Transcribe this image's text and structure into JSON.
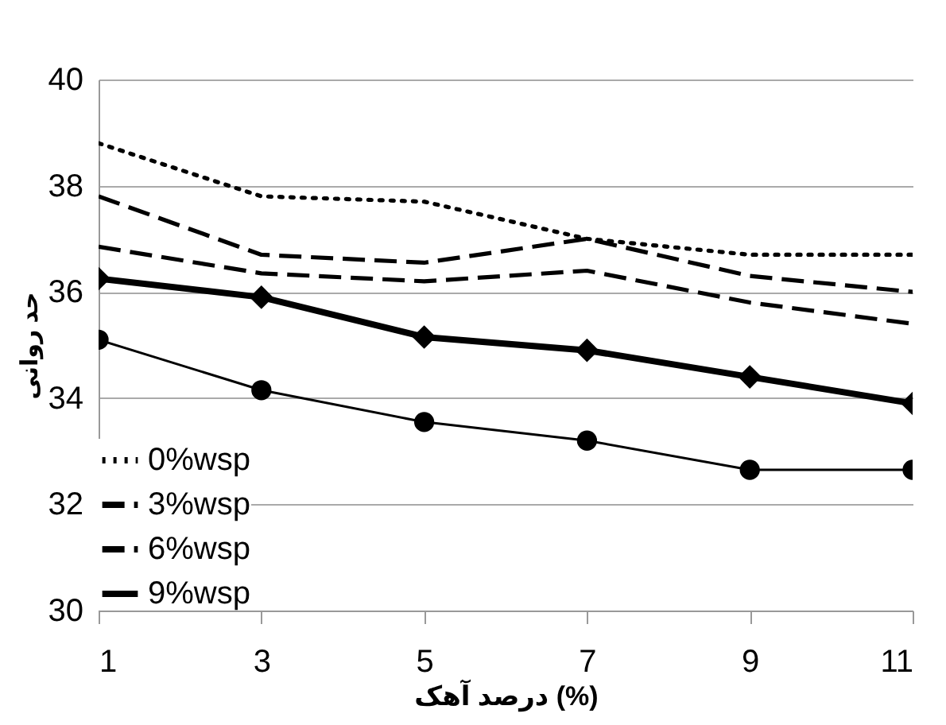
{
  "chart_data": {
    "type": "line",
    "xlabel": "درصد آهک (%)",
    "ylabel": "حد روانی",
    "x": [
      1,
      3,
      5,
      7,
      9,
      11
    ],
    "series": [
      {
        "name": "0%wsp",
        "color": "#000000",
        "line_style": "dotted",
        "marker": "none",
        "values": [
          38.8,
          37.8,
          37.7,
          37.0,
          36.7,
          36.7
        ]
      },
      {
        "name": "3%wsp",
        "color": "#000000",
        "line_style": "dashed",
        "marker": "none",
        "values": [
          37.8,
          36.7,
          36.55,
          37.0,
          36.3,
          36.0
        ]
      },
      {
        "name": "6%wsp",
        "color": "#000000",
        "line_style": "dashed",
        "marker": "none",
        "values": [
          36.85,
          36.35,
          36.2,
          36.4,
          35.8,
          35.4
        ]
      },
      {
        "name": "9%wsp",
        "color": "#000000",
        "line_style": "solid",
        "marker": "diamond",
        "values": [
          36.25,
          35.9,
          35.15,
          34.9,
          34.4,
          33.9
        ]
      },
      {
        "color": "#000000",
        "line_style": "solid",
        "marker": "circle",
        "values": [
          35.1,
          34.15,
          33.55,
          33.2,
          32.65,
          32.65
        ]
      }
    ],
    "xlim": [
      1,
      11
    ],
    "xticks": [
      1,
      3,
      5,
      7,
      9,
      11
    ],
    "ylim": [
      30,
      40
    ],
    "yticks": [
      30,
      32,
      34,
      36,
      38,
      40
    ],
    "grid": "y",
    "legend": "bottom left"
  }
}
